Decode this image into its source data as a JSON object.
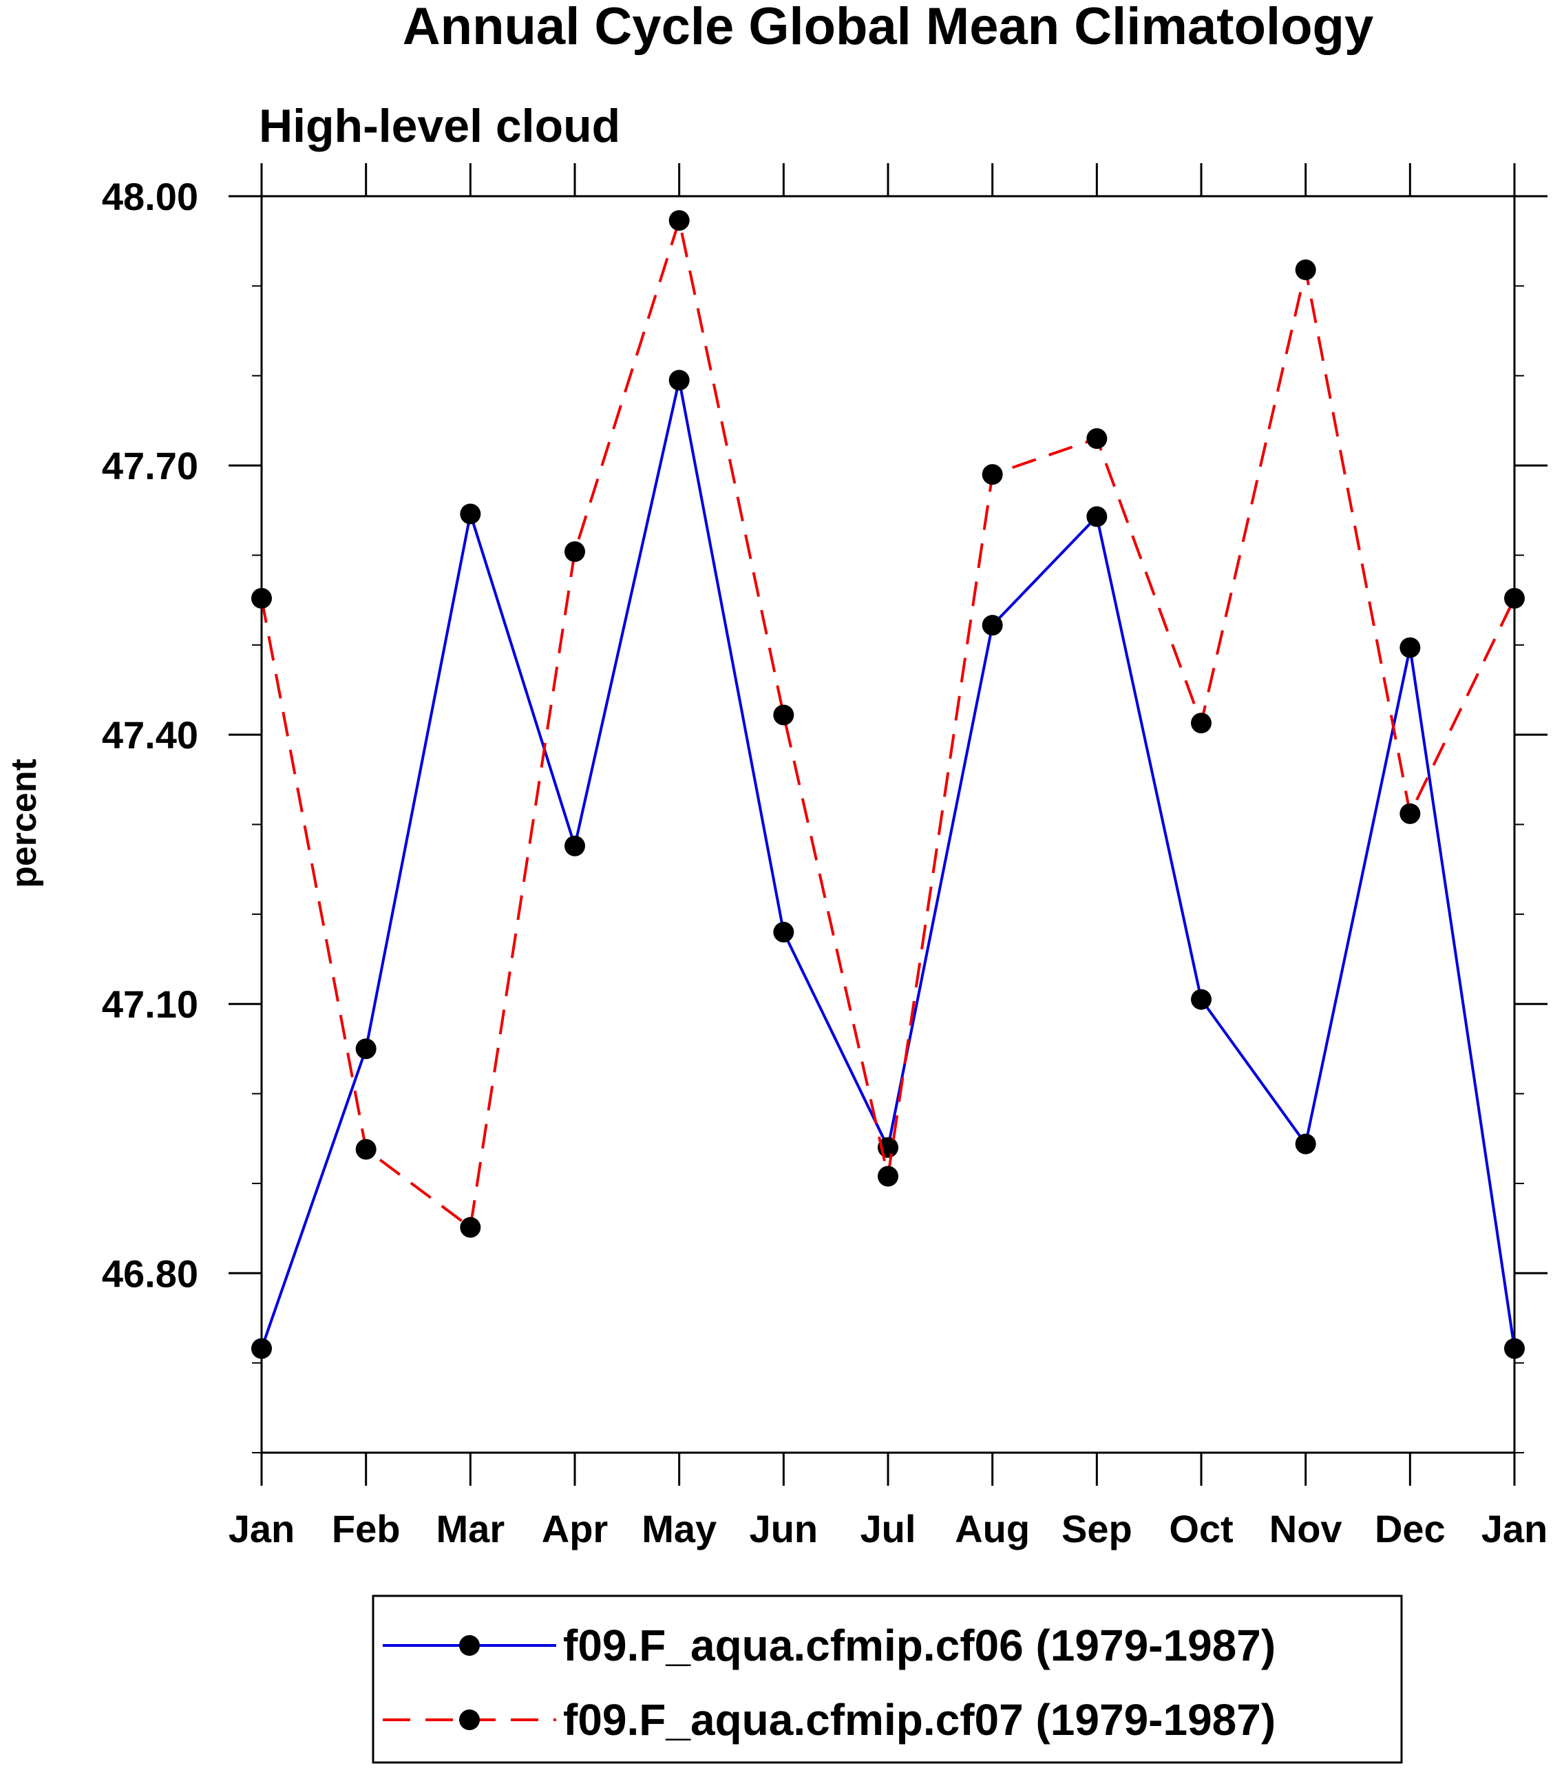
{
  "chart_data": {
    "type": "line",
    "title": "Annual Cycle Global Mean Climatology",
    "subtitle": "High-level cloud",
    "xlabel": "",
    "ylabel": "percent",
    "categories": [
      "Jan",
      "Feb",
      "Mar",
      "Apr",
      "May",
      "Jun",
      "Jul",
      "Aug",
      "Sep",
      "Oct",
      "Nov",
      "Dec",
      "Jan"
    ],
    "ylim": [
      46.6,
      48.0
    ],
    "yticks": [
      "46.80",
      "47.10",
      "47.40",
      "47.70",
      "48.00"
    ],
    "ytick_values": [
      46.8,
      47.1,
      47.4,
      47.7,
      48.0
    ],
    "yminor_step": 0.1,
    "grid": false,
    "legend_position": "bottom",
    "series": [
      {
        "name": "f09.F_aqua.cfmip.cf06 (1979-1987)",
        "color": "#0000dd",
        "dash": "solid",
        "values": [
          46.716,
          47.05,
          47.646,
          47.276,
          47.795,
          47.18,
          46.94,
          47.522,
          47.643,
          47.105,
          46.944,
          47.497,
          46.716
        ]
      },
      {
        "name": "f09.F_aqua.cfmip.cf07 (1979-1987)",
        "color": "#ee0000",
        "dash": "dashed",
        "values": [
          47.552,
          46.938,
          46.851,
          47.604,
          47.973,
          47.422,
          46.908,
          47.69,
          47.73,
          47.413,
          47.918,
          47.312,
          47.552
        ]
      }
    ]
  }
}
